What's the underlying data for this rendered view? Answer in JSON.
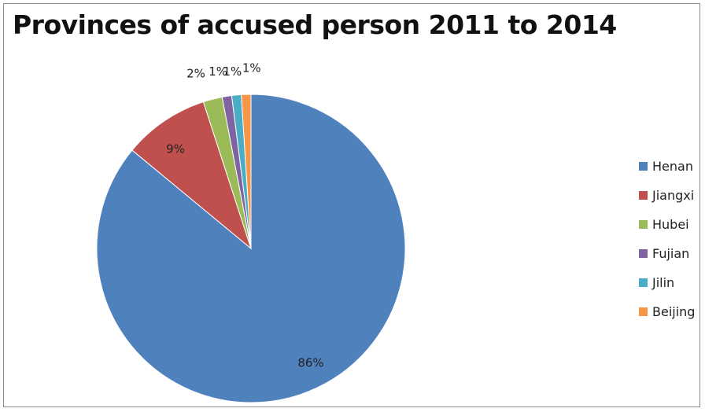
{
  "chart_data": {
    "type": "pie",
    "title": "Provinces of accused person 2011 to 2014",
    "legend_position": "right",
    "slices": [
      {
        "name": "Henan",
        "value": 86,
        "label": "86%",
        "color": "#4f81bd"
      },
      {
        "name": "Jiangxi",
        "value": 9,
        "label": "9%",
        "color": "#c0504d"
      },
      {
        "name": "Hubei",
        "value": 2,
        "label": "2%",
        "color": "#9bbb59"
      },
      {
        "name": "Fujian",
        "value": 1,
        "label": "1%",
        "color": "#8064a2"
      },
      {
        "name": "Jilin",
        "value": 1,
        "label": "1%",
        "color": "#4bacc6"
      },
      {
        "name": "Beijing",
        "value": 1,
        "label": "1%",
        "color": "#f79646"
      }
    ]
  }
}
